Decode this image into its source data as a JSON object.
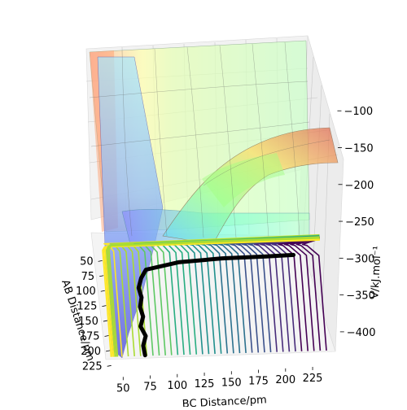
{
  "chart_data": {
    "type": "surface",
    "title": "",
    "projection": "3d",
    "grid": true,
    "legend": "none",
    "colormap": "viridis",
    "x_axis": {
      "label": "BC Distance/pm",
      "ticks": [
        50,
        75,
        100,
        125,
        150,
        175,
        200,
        225
      ],
      "tick_labels": [
        "50",
        "75",
        "100",
        "125",
        "150",
        "175",
        "200",
        "225"
      ],
      "range": [
        40,
        240
      ]
    },
    "y_axis": {
      "label": "AB Distance/pm",
      "ticks": [
        50,
        75,
        100,
        125,
        150,
        175,
        200,
        225
      ],
      "tick_labels": [
        "50",
        "75",
        "100",
        "125",
        "150",
        "175",
        "200",
        "225"
      ],
      "range": [
        40,
        230
      ]
    },
    "z_axis": {
      "label": "V/kJ.mol⁻¹",
      "ticks": [
        -100,
        -150,
        -200,
        -250,
        -300,
        -350,
        -400
      ],
      "tick_labels": [
        "−100",
        "−150",
        "−200",
        "−250",
        "−300",
        "−350",
        "−400"
      ],
      "range": [
        -420,
        -60
      ]
    },
    "surface": {
      "description_levels": "filled potential energy surface with contour projection on the floor",
      "colors": [
        "#ff8c69",
        "#ffd966",
        "#ffff99",
        "#ccff99",
        "#b3ffcc",
        "#66e0ff",
        "#6666ff",
        "#2b2bcc"
      ]
    },
    "trajectory": {
      "color": "#000000",
      "points": [
        {
          "x": 73,
          "y": 225
        },
        {
          "x": 72,
          "y": 210
        },
        {
          "x": 75,
          "y": 195
        },
        {
          "x": 71,
          "y": 180
        },
        {
          "x": 74,
          "y": 165
        },
        {
          "x": 72,
          "y": 150
        },
        {
          "x": 74,
          "y": 135
        },
        {
          "x": 72,
          "y": 120
        },
        {
          "x": 75,
          "y": 105
        },
        {
          "x": 80,
          "y": 92
        },
        {
          "x": 110,
          "y": 82
        },
        {
          "x": 150,
          "y": 78
        },
        {
          "x": 190,
          "y": 77
        },
        {
          "x": 215,
          "y": 76
        }
      ]
    }
  }
}
